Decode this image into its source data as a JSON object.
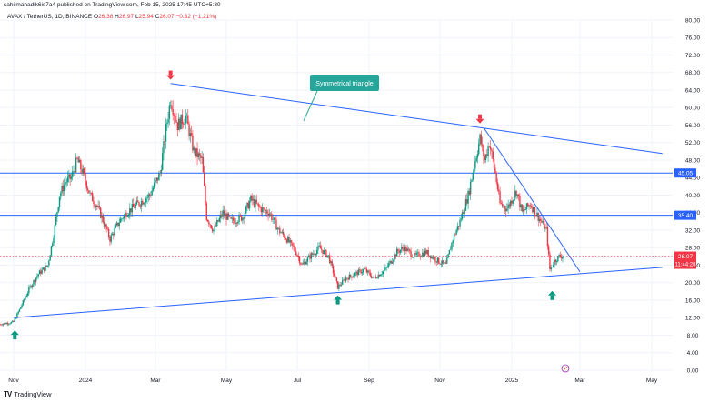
{
  "header": {
    "publisher": "sahilmahadik6is7a4 published on TradingView.com, Feb 15, 2025 17:45 UTC+5:30",
    "symbol": "AVAX / TetherUS, 1D, BINANCE",
    "ohlc": [
      {
        "label": "O",
        "value": "26.38"
      },
      {
        "label": "H",
        "value": "26.97"
      },
      {
        "label": "L",
        "value": "25.94"
      },
      {
        "label": "C",
        "value": "26.07"
      }
    ],
    "change": "−0.32 (−1.21%)"
  },
  "brand": {
    "name": "TradingView",
    "mark": "TV"
  },
  "colors": {
    "up": "#089981",
    "down": "#f23645",
    "trendline": "#2962ff",
    "callout": "#26a69a",
    "level_label": "#2962ff",
    "price_label": "#f23645"
  },
  "chart_data": {
    "type": "candlestick",
    "title": "",
    "xlabel": "",
    "ylabel": "",
    "x_ticks": [
      "Nov",
      "2024",
      "Mar",
      "May",
      "Jul",
      "Sep",
      "Nov",
      "2025",
      "Mar",
      "May"
    ],
    "y_ticks": [
      "80.00",
      "76.00",
      "72.00",
      "68.00",
      "64.00",
      "60.00",
      "56.00",
      "52.00",
      "48.00",
      "44.00",
      "40.00",
      "36.00",
      "32.00",
      "28.00",
      "24.00",
      "20.00",
      "16.00",
      "12.00",
      "8.00",
      "4.00",
      "0.00"
    ],
    "ylim": [
      0,
      80
    ],
    "grid": true,
    "horizontal_levels": [
      {
        "value": 45.05,
        "label": "45.05"
      },
      {
        "value": 35.4,
        "label": "35.40"
      }
    ],
    "current_price": {
      "value": 26.07,
      "label": "26.07",
      "countdown": "11:44:28"
    },
    "annotation": "Symmetrical triangle",
    "trendlines": [
      {
        "name": "upper",
        "from": {
          "x": "2024-03-14",
          "y": 65.5
        },
        "to": {
          "x": "2025-05-10",
          "y": 49.5
        }
      },
      {
        "name": "lower",
        "from": {
          "x": "2023-11-01",
          "y": 12.0
        },
        "to": {
          "x": "2025-05-10",
          "y": 23.5
        }
      },
      {
        "name": "short",
        "from": {
          "x": "2024-12-08",
          "y": 55.5
        },
        "to": {
          "x": "2025-03-01",
          "y": 22.5
        }
      }
    ],
    "markers": [
      {
        "type": "down",
        "x": "2024-03-14",
        "y": 67.0
      },
      {
        "type": "down",
        "x": "2024-12-05",
        "y": 57.0
      },
      {
        "type": "up",
        "x": "2023-11-02",
        "y": 8.5
      },
      {
        "type": "up",
        "x": "2024-08-05",
        "y": 16.5
      },
      {
        "type": "up",
        "x": "2025-02-05",
        "y": 17.5
      }
    ],
    "price_path": [
      {
        "x": "2023-10-20",
        "y": 10.5
      },
      {
        "x": "2023-11-01",
        "y": 11.0
      },
      {
        "x": "2023-11-08",
        "y": 15.0
      },
      {
        "x": "2023-11-15",
        "y": 19.0
      },
      {
        "x": "2023-11-22",
        "y": 22.0
      },
      {
        "x": "2023-11-30",
        "y": 24.0
      },
      {
        "x": "2023-12-05",
        "y": 31.0
      },
      {
        "x": "2023-12-10",
        "y": 40.0
      },
      {
        "x": "2023-12-15",
        "y": 43.0
      },
      {
        "x": "2023-12-20",
        "y": 44.0
      },
      {
        "x": "2023-12-25",
        "y": 48.0
      },
      {
        "x": "2023-12-30",
        "y": 45.0
      },
      {
        "x": "2024-01-05",
        "y": 40.0
      },
      {
        "x": "2024-01-10",
        "y": 38.0
      },
      {
        "x": "2024-01-15",
        "y": 35.0
      },
      {
        "x": "2024-01-22",
        "y": 30.0
      },
      {
        "x": "2024-01-30",
        "y": 34.0
      },
      {
        "x": "2024-02-05",
        "y": 36.0
      },
      {
        "x": "2024-02-15",
        "y": 38.0
      },
      {
        "x": "2024-02-25",
        "y": 40.0
      },
      {
        "x": "2024-03-05",
        "y": 45.0
      },
      {
        "x": "2024-03-10",
        "y": 55.0
      },
      {
        "x": "2024-03-14",
        "y": 62.0
      },
      {
        "x": "2024-03-20",
        "y": 56.0
      },
      {
        "x": "2024-03-27",
        "y": 58.0
      },
      {
        "x": "2024-04-03",
        "y": 50.0
      },
      {
        "x": "2024-04-10",
        "y": 48.0
      },
      {
        "x": "2024-04-14",
        "y": 35.0
      },
      {
        "x": "2024-04-20",
        "y": 32.0
      },
      {
        "x": "2024-04-28",
        "y": 36.0
      },
      {
        "x": "2024-05-05",
        "y": 34.0
      },
      {
        "x": "2024-05-15",
        "y": 35.0
      },
      {
        "x": "2024-05-22",
        "y": 39.0
      },
      {
        "x": "2024-05-30",
        "y": 37.0
      },
      {
        "x": "2024-06-07",
        "y": 36.0
      },
      {
        "x": "2024-06-15",
        "y": 32.0
      },
      {
        "x": "2024-06-22",
        "y": 30.0
      },
      {
        "x": "2024-06-30",
        "y": 27.0
      },
      {
        "x": "2024-07-05",
        "y": 24.0
      },
      {
        "x": "2024-07-12",
        "y": 26.0
      },
      {
        "x": "2024-07-20",
        "y": 28.0
      },
      {
        "x": "2024-07-28",
        "y": 26.0
      },
      {
        "x": "2024-08-05",
        "y": 19.0
      },
      {
        "x": "2024-08-12",
        "y": 21.0
      },
      {
        "x": "2024-08-20",
        "y": 22.0
      },
      {
        "x": "2024-08-28",
        "y": 23.0
      },
      {
        "x": "2024-09-05",
        "y": 21.0
      },
      {
        "x": "2024-09-15",
        "y": 23.0
      },
      {
        "x": "2024-09-25",
        "y": 27.0
      },
      {
        "x": "2024-10-01",
        "y": 28.0
      },
      {
        "x": "2024-10-10",
        "y": 26.0
      },
      {
        "x": "2024-10-20",
        "y": 27.0
      },
      {
        "x": "2024-10-30",
        "y": 25.0
      },
      {
        "x": "2024-11-06",
        "y": 24.0
      },
      {
        "x": "2024-11-12",
        "y": 30.0
      },
      {
        "x": "2024-11-18",
        "y": 34.0
      },
      {
        "x": "2024-11-25",
        "y": 40.0
      },
      {
        "x": "2024-12-01",
        "y": 48.0
      },
      {
        "x": "2024-12-05",
        "y": 53.0
      },
      {
        "x": "2024-12-09",
        "y": 48.0
      },
      {
        "x": "2024-12-13",
        "y": 52.0
      },
      {
        "x": "2024-12-18",
        "y": 45.0
      },
      {
        "x": "2024-12-22",
        "y": 38.0
      },
      {
        "x": "2024-12-28",
        "y": 37.0
      },
      {
        "x": "2025-01-05",
        "y": 41.0
      },
      {
        "x": "2025-01-10",
        "y": 36.0
      },
      {
        "x": "2025-01-17",
        "y": 38.0
      },
      {
        "x": "2025-01-24",
        "y": 35.0
      },
      {
        "x": "2025-01-31",
        "y": 32.0
      },
      {
        "x": "2025-02-03",
        "y": 23.0
      },
      {
        "x": "2025-02-07",
        "y": 25.0
      },
      {
        "x": "2025-02-11",
        "y": 26.0
      },
      {
        "x": "2025-02-15",
        "y": 26.07
      }
    ]
  }
}
